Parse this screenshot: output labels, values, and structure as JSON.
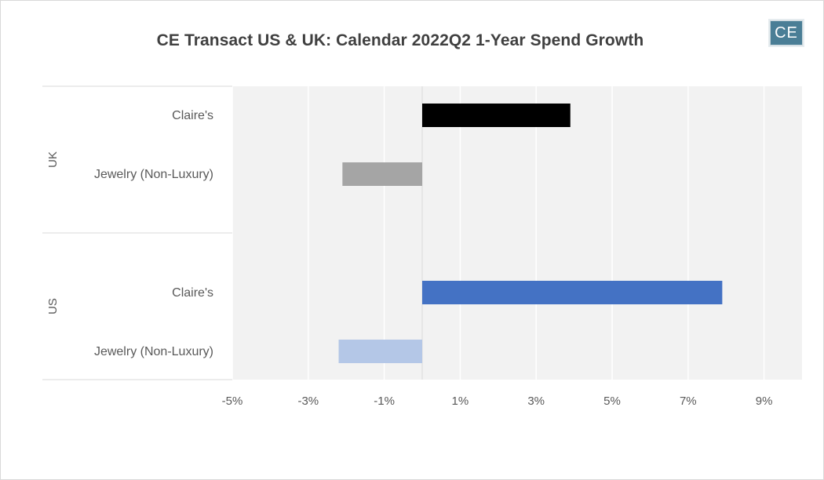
{
  "title": "CE Transact US & UK: Calendar 2022Q2 1-Year Spend Growth",
  "logo": {
    "text": "CE",
    "color": "#4a7e96"
  },
  "chart_data": {
    "type": "bar",
    "orientation": "horizontal",
    "title": "CE Transact US & UK: Calendar 2022Q2 1-Year Spend Growth",
    "xlabel": "",
    "ylabel": "",
    "xlim": [
      -5,
      10
    ],
    "xticks": [
      -5,
      -3,
      -1,
      1,
      3,
      5,
      7,
      9
    ],
    "xtick_labels": [
      "-5%",
      "-3%",
      "-1%",
      "1%",
      "3%",
      "5%",
      "7%",
      "9%"
    ],
    "grid": true,
    "legend": "none",
    "groups": [
      {
        "name": "UK",
        "bars": [
          {
            "category": "Claire's",
            "value": 3.9,
            "color": "#000000"
          },
          {
            "category": "Jewelry (Non-Luxury)",
            "value": -2.1,
            "color": "#a5a5a5"
          }
        ]
      },
      {
        "name": "US",
        "bars": [
          {
            "category": "Claire's",
            "value": 7.9,
            "color": "#4472c4"
          },
          {
            "category": "Jewelry (Non-Luxury)",
            "value": -2.2,
            "color": "#b4c7e7"
          }
        ]
      }
    ]
  }
}
